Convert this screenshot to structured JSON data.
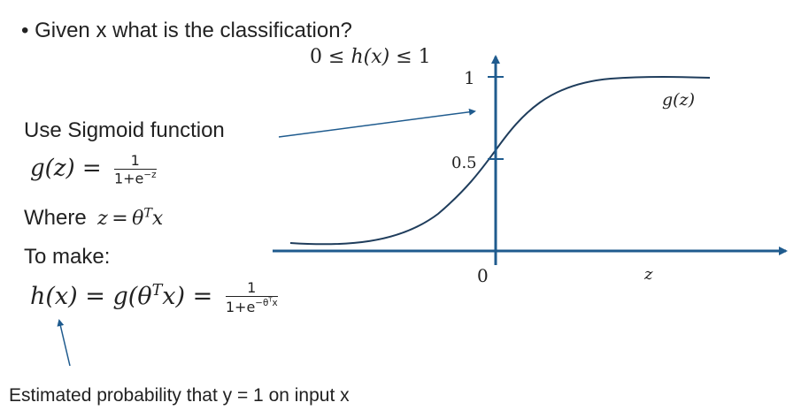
{
  "bullet": "Given x what is the classification?",
  "range": {
    "lhs": "0",
    "le1": "≤",
    "fn": "h(x)",
    "le2": "≤",
    "rhs": "1"
  },
  "sigmoid_label": "Use  Sigmoid function",
  "gz": {
    "lhs": "g(z)",
    "eq": "=",
    "num": "1",
    "den_base": "1+e",
    "den_exp": "−z"
  },
  "where": {
    "word": "Where",
    "z": "z",
    "eq": "=",
    "theta": "θ",
    "T": "T",
    "x": "x"
  },
  "to_make": "To make:",
  "hx": {
    "lhs": "h(x)",
    "eq1": "=",
    "mid": "g(θ",
    "T": "T",
    "mid_end": "x)",
    "eq2": "=",
    "num": "1",
    "den_base": "1+e",
    "den_exp": "−θ",
    "den_T": "T",
    "den_x": "x"
  },
  "estimated": "Estimated probability that y = 1 on input x",
  "graph": {
    "curve_label": "g(z)",
    "y_tick_top": "1",
    "y_tick_mid": "0.5",
    "origin": "0",
    "x_axis_label": "z",
    "axis_color": "#1f5b8e",
    "curve_color": "#1f3d5c"
  }
}
